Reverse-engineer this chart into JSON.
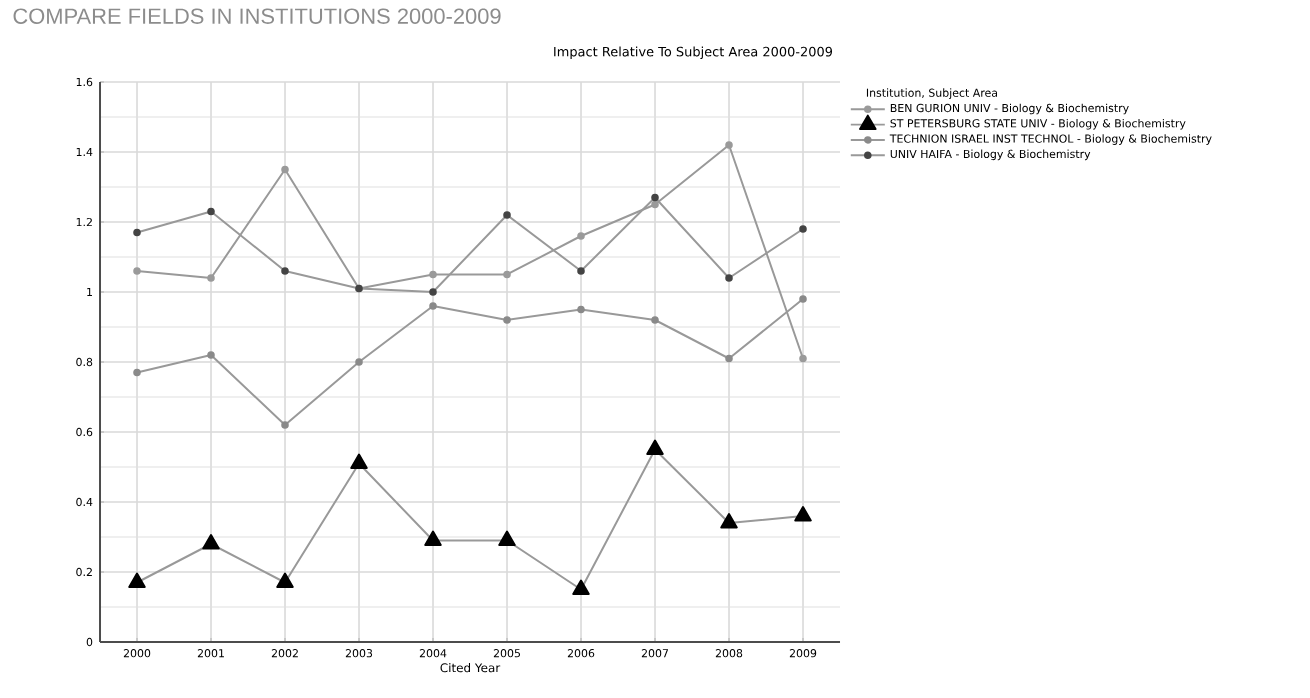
{
  "chart_data": {
    "type": "line",
    "title": "COMPARE FIELDS IN INSTITUTIONS 2000-2009",
    "subtitle": "Impact Relative To Subject Area 2000-2009",
    "xlabel": "Cited Year",
    "legend_title": "Institution, Subject Area",
    "categories": [
      "2000",
      "2001",
      "2002",
      "2003",
      "2004",
      "2005",
      "2006",
      "2007",
      "2008",
      "2009"
    ],
    "series": [
      {
        "name": "BEN GURION UNIV - Biology & Biochemistry",
        "color": "#9a9a9a",
        "marker": "circle",
        "values": [
          1.06,
          1.04,
          1.35,
          1.01,
          1.05,
          1.05,
          1.16,
          1.25,
          1.42,
          0.81
        ]
      },
      {
        "name": "ST PETERSBURG STATE UNIV - Biology & Biochemistry",
        "color": "#000000",
        "marker": "triangle",
        "values": [
          0.17,
          0.28,
          0.17,
          0.51,
          0.29,
          0.29,
          0.15,
          0.55,
          0.34,
          0.36
        ]
      },
      {
        "name": "TECHNION ISRAEL INST TECHNOL - Biology & Biochemistry",
        "color": "#8a8a8a",
        "marker": "circle",
        "values": [
          0.77,
          0.82,
          0.62,
          0.8,
          0.96,
          0.92,
          0.95,
          0.92,
          0.81,
          0.98
        ]
      },
      {
        "name": "UNIV HAIFA - Biology & Biochemistry",
        "color": "#444444",
        "marker": "circle",
        "values": [
          1.17,
          1.23,
          1.06,
          1.01,
          1.0,
          1.22,
          1.06,
          1.27,
          1.04,
          1.18
        ]
      }
    ],
    "ylim": [
      0,
      1.6
    ],
    "yticks": [
      0,
      0.2,
      0.4,
      0.6,
      0.8,
      1,
      1.2,
      1.4,
      1.6
    ],
    "grid": true,
    "legend": "right",
    "line_style": "solid"
  }
}
